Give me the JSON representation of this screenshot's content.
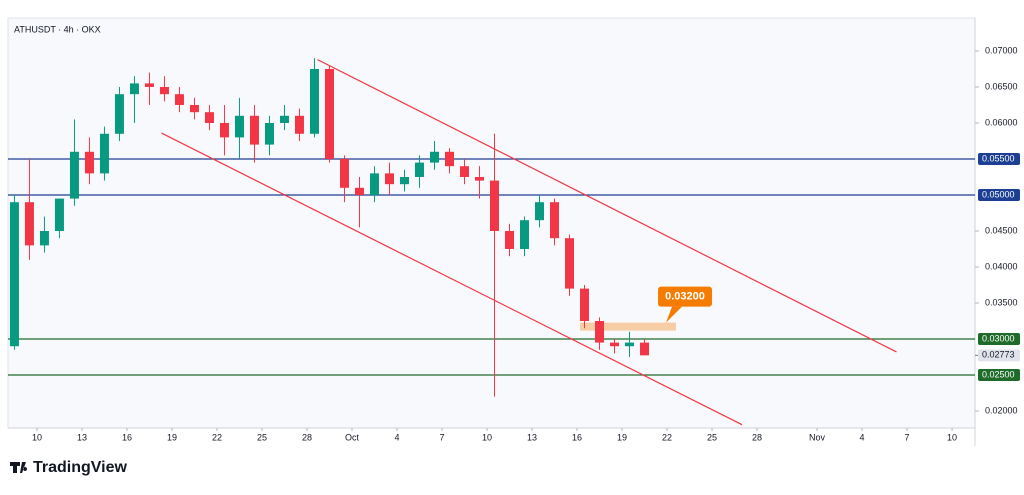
{
  "chart_data": {
    "type": "candlestick",
    "title": "ATHUSDT · 4h · OKX",
    "brand": "TradingView",
    "x": [
      8,
      9,
      10,
      11,
      12,
      13,
      14,
      15,
      16,
      17,
      18,
      19,
      20,
      21,
      22,
      23,
      24,
      25,
      26,
      27,
      28,
      29,
      30,
      31,
      32,
      33,
      34,
      35,
      36,
      37,
      38,
      39,
      40,
      41,
      42,
      43,
      44,
      45,
      46,
      47,
      48,
      49,
      50
    ],
    "open": [
      0.029,
      0.049,
      0.043,
      0.045,
      0.0495,
      0.056,
      0.053,
      0.0585,
      0.064,
      0.0655,
      0.065,
      0.064,
      0.0625,
      0.0615,
      0.06,
      0.058,
      0.061,
      0.057,
      0.06,
      0.061,
      0.0585,
      0.0675,
      0.055,
      0.051,
      0.05,
      0.053,
      0.0515,
      0.0525,
      0.0545,
      0.056,
      0.054,
      0.0525,
      0.052,
      0.045,
      0.0425,
      0.0465,
      0.049,
      0.044,
      0.037,
      0.0325,
      0.0295,
      0.029,
      0.0295
    ],
    "high": [
      0.05,
      0.055,
      0.047,
      0.0495,
      0.0605,
      0.058,
      0.0595,
      0.065,
      0.0665,
      0.067,
      0.0665,
      0.065,
      0.0635,
      0.0625,
      0.0625,
      0.0635,
      0.0625,
      0.061,
      0.0625,
      0.062,
      0.069,
      0.068,
      0.0555,
      0.0525,
      0.054,
      0.0545,
      0.0535,
      0.0555,
      0.0575,
      0.0565,
      0.055,
      0.054,
      0.0585,
      0.046,
      0.047,
      0.05,
      0.0495,
      0.0445,
      0.0375,
      0.033,
      0.03,
      0.031,
      0.03
    ],
    "low": [
      0.0285,
      0.041,
      0.042,
      0.044,
      0.0485,
      0.0515,
      0.052,
      0.0575,
      0.06,
      0.0625,
      0.063,
      0.0615,
      0.0605,
      0.059,
      0.0555,
      0.055,
      0.0545,
      0.0555,
      0.059,
      0.0575,
      0.058,
      0.0545,
      0.049,
      0.0455,
      0.049,
      0.05,
      0.0505,
      0.051,
      0.0535,
      0.053,
      0.0515,
      0.0495,
      0.022,
      0.0415,
      0.0415,
      0.0455,
      0.043,
      0.036,
      0.0315,
      0.0285,
      0.028,
      0.0275,
      0.02773
    ],
    "close": [
      0.049,
      0.043,
      0.045,
      0.0495,
      0.056,
      0.053,
      0.0585,
      0.064,
      0.0655,
      0.065,
      0.064,
      0.0625,
      0.0615,
      0.06,
      0.058,
      0.061,
      0.057,
      0.06,
      0.061,
      0.0585,
      0.0675,
      0.055,
      0.051,
      0.05,
      0.053,
      0.0515,
      0.0525,
      0.0545,
      0.056,
      0.054,
      0.0525,
      0.052,
      0.045,
      0.0425,
      0.0465,
      0.049,
      0.044,
      0.037,
      0.0325,
      0.0295,
      0.029,
      0.0295,
      0.02773
    ],
    "up_color": "#089981",
    "down_color": "#f23645",
    "xlim": [
      8.07,
      72.53
    ],
    "ylim": [
      0.01764,
      0.07458
    ],
    "xticks": [
      {
        "value": 10,
        "label": "10"
      },
      {
        "value": 13,
        "label": "13"
      },
      {
        "value": 16,
        "label": "16"
      },
      {
        "value": 19,
        "label": "19"
      },
      {
        "value": 22,
        "label": "22"
      },
      {
        "value": 25,
        "label": "25"
      },
      {
        "value": 28,
        "label": "28"
      },
      {
        "value": 31,
        "label": "Oct"
      },
      {
        "value": 34,
        "label": "4"
      },
      {
        "value": 37,
        "label": "7"
      },
      {
        "value": 40,
        "label": "10"
      },
      {
        "value": 43,
        "label": "13"
      },
      {
        "value": 46,
        "label": "16"
      },
      {
        "value": 49,
        "label": "19"
      },
      {
        "value": 52,
        "label": "22"
      },
      {
        "value": 55,
        "label": "25"
      },
      {
        "value": 58,
        "label": "28"
      },
      {
        "value": 62,
        "label": "Nov"
      },
      {
        "value": 65,
        "label": "4"
      },
      {
        "value": 68,
        "label": "7"
      },
      {
        "value": 71,
        "label": "10"
      }
    ],
    "yticks": [
      {
        "value": 0.07,
        "label": "0.07000"
      },
      {
        "value": 0.065,
        "label": "0.06500"
      },
      {
        "value": 0.06,
        "label": "0.06000"
      },
      {
        "value": 0.045,
        "label": "0.04500"
      },
      {
        "value": 0.04,
        "label": "0.04000"
      },
      {
        "value": 0.035,
        "label": "0.03500"
      },
      {
        "value": 0.02,
        "label": "0.02000"
      }
    ],
    "levels": [
      {
        "value": 0.055,
        "label": "0.05500",
        "color": "#1c3f94"
      },
      {
        "value": 0.05,
        "label": "0.05000",
        "color": "#1c3f94"
      },
      {
        "value": 0.03,
        "label": "0.03000",
        "color": "#1e6b2a"
      },
      {
        "value": 0.025,
        "label": "0.02500",
        "color": "#1e6b2a"
      }
    ],
    "current_price": {
      "value": 0.02773,
      "label": "0.02773"
    },
    "channel": {
      "color": "#f23645",
      "lines": [
        {
          "x": [
            28.7,
            67.3
          ],
          "y": [
            0.0688,
            0.0282
          ]
        },
        {
          "x": [
            18.3,
            57
          ],
          "y": [
            0.0586,
            0.0181
          ]
        }
      ]
    },
    "zone": {
      "value": 0.032,
      "label": "0.03200",
      "x": [
        46.2,
        52.6
      ],
      "color": "#f57c00"
    }
  }
}
